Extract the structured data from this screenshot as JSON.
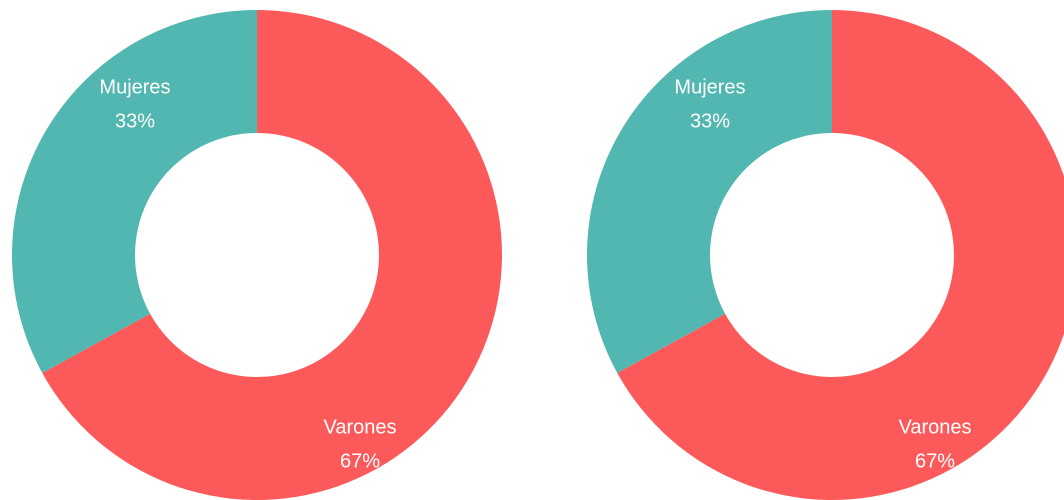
{
  "chart_data": [
    {
      "type": "pie",
      "donut": true,
      "categories": [
        "Varones",
        "Mujeres"
      ],
      "values": [
        67,
        33
      ],
      "value_labels": [
        "67%",
        "33%"
      ],
      "colors": [
        "#fc5a5a",
        "#52b7b0"
      ]
    },
    {
      "type": "pie",
      "donut": true,
      "categories": [
        "Varones",
        "Mujeres"
      ],
      "values": [
        67,
        33
      ],
      "value_labels": [
        "67%",
        "33%"
      ],
      "colors": [
        "#fc5a5a",
        "#52b7b0"
      ]
    }
  ]
}
